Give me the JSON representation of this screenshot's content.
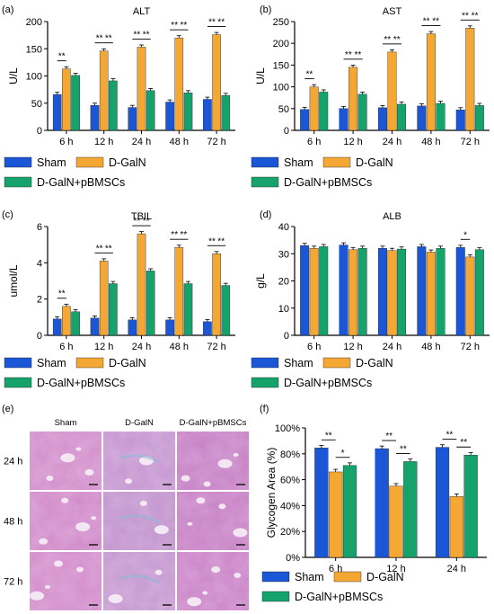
{
  "colors": {
    "sham": "#1a56d6",
    "dgaln": "#f5a733",
    "pbmsc": "#16a36b"
  },
  "legend": [
    "Sham",
    "D-GalN",
    "D-GalN+pBMSCs"
  ],
  "chart_data": [
    {
      "panel": "(a)",
      "type": "bar",
      "title": "ALT",
      "ylabel": "U/L",
      "categories": [
        "6 h",
        "12 h",
        "24 h",
        "48 h",
        "72 h"
      ],
      "ylim": [
        0,
        200
      ],
      "yticks": [
        0,
        50,
        100,
        150,
        200
      ],
      "series": [
        {
          "name": "Sham",
          "values": [
            66,
            46,
            42,
            52,
            57
          ]
        },
        {
          "name": "D-GalN",
          "values": [
            113,
            146,
            153,
            170,
            176
          ]
        },
        {
          "name": "D-GalN+pBMSCs",
          "values": [
            101,
            91,
            73,
            69,
            64
          ]
        }
      ],
      "significance": [
        {
          "group": 0,
          "from": 0,
          "to": 1,
          "label": "**"
        },
        {
          "group": 1,
          "from": 0,
          "to": 1,
          "label": "**"
        },
        {
          "group": 1,
          "from": 1,
          "to": 2,
          "label": "**"
        },
        {
          "group": 2,
          "from": 0,
          "to": 1,
          "label": "**"
        },
        {
          "group": 2,
          "from": 1,
          "to": 2,
          "label": "**"
        },
        {
          "group": 3,
          "from": 0,
          "to": 1,
          "label": "**"
        },
        {
          "group": 3,
          "from": 1,
          "to": 2,
          "label": "**"
        },
        {
          "group": 4,
          "from": 0,
          "to": 1,
          "label": "**"
        },
        {
          "group": 4,
          "from": 1,
          "to": 2,
          "label": "**"
        }
      ]
    },
    {
      "panel": "(b)",
      "type": "bar",
      "title": "AST",
      "ylabel": "U/L",
      "categories": [
        "6 h",
        "12 h",
        "24 h",
        "48 h",
        "72 h"
      ],
      "ylim": [
        0,
        250
      ],
      "yticks": [
        0,
        50,
        100,
        150,
        200,
        250
      ],
      "series": [
        {
          "name": "Sham",
          "values": [
            48,
            50,
            52,
            56,
            47
          ]
        },
        {
          "name": "D-GalN",
          "values": [
            100,
            145,
            180,
            222,
            235
          ]
        },
        {
          "name": "D-GalN+pBMSCs",
          "values": [
            88,
            83,
            60,
            62,
            57
          ]
        }
      ],
      "significance": [
        {
          "group": 0,
          "from": 0,
          "to": 1,
          "label": "**"
        },
        {
          "group": 1,
          "from": 0,
          "to": 1,
          "label": "**"
        },
        {
          "group": 1,
          "from": 1,
          "to": 2,
          "label": "**"
        },
        {
          "group": 2,
          "from": 0,
          "to": 1,
          "label": "**"
        },
        {
          "group": 2,
          "from": 1,
          "to": 2,
          "label": "**"
        },
        {
          "group": 3,
          "from": 0,
          "to": 1,
          "label": "**"
        },
        {
          "group": 3,
          "from": 1,
          "to": 2,
          "label": "**"
        },
        {
          "group": 4,
          "from": 0,
          "to": 1,
          "label": "**"
        },
        {
          "group": 4,
          "from": 1,
          "to": 2,
          "label": "**"
        }
      ]
    },
    {
      "panel": "(c)",
      "type": "bar",
      "title": "TBIL",
      "ylabel": "umol/L",
      "categories": [
        "6 h",
        "12 h",
        "24 h",
        "48 h",
        "72 h"
      ],
      "ylim": [
        0,
        6
      ],
      "yticks": [
        0,
        2,
        4,
        6
      ],
      "series": [
        {
          "name": "Sham",
          "values": [
            0.9,
            0.95,
            0.85,
            0.85,
            0.75
          ]
        },
        {
          "name": "D-GalN",
          "values": [
            1.6,
            4.1,
            5.6,
            4.85,
            4.5
          ]
        },
        {
          "name": "D-GalN+pBMSCs",
          "values": [
            1.3,
            2.85,
            3.55,
            2.85,
            2.75
          ]
        }
      ],
      "significance": [
        {
          "group": 0,
          "from": 0,
          "to": 1,
          "label": "**"
        },
        {
          "group": 1,
          "from": 0,
          "to": 1,
          "label": "**"
        },
        {
          "group": 1,
          "from": 1,
          "to": 2,
          "label": "**"
        },
        {
          "group": 2,
          "from": 0,
          "to": 1,
          "label": "**"
        },
        {
          "group": 2,
          "from": 1,
          "to": 2,
          "label": "**"
        },
        {
          "group": 3,
          "from": 0,
          "to": 1,
          "label": "**"
        },
        {
          "group": 3,
          "from": 1,
          "to": 2,
          "label": "**"
        },
        {
          "group": 4,
          "from": 0,
          "to": 1,
          "label": "**"
        },
        {
          "group": 4,
          "from": 1,
          "to": 2,
          "label": "**"
        }
      ]
    },
    {
      "panel": "(d)",
      "type": "bar",
      "title": "ALB",
      "ylabel": "g/L",
      "categories": [
        "6 h",
        "12 h",
        "24 h",
        "48 h",
        "72 h"
      ],
      "ylim": [
        0,
        40
      ],
      "yticks": [
        0,
        10,
        20,
        30,
        40
      ],
      "series": [
        {
          "name": "Sham",
          "values": [
            33,
            33.2,
            32,
            32.6,
            32.3
          ]
        },
        {
          "name": "D-GalN",
          "values": [
            32,
            31.5,
            31.2,
            30.6,
            28.8
          ]
        },
        {
          "name": "D-GalN+pBMSCs",
          "values": [
            32.6,
            32,
            31.7,
            32,
            31.5
          ]
        }
      ],
      "significance": [
        {
          "group": 4,
          "from": 0,
          "to": 1,
          "label": "*"
        }
      ]
    },
    {
      "panel": "(f)",
      "type": "bar",
      "title": "",
      "ylabel": "Glycogen Area (%)",
      "categories": [
        "6 h",
        "12 h",
        "24 h"
      ],
      "ylim": [
        0,
        100
      ],
      "yticks": [
        0,
        20,
        40,
        60,
        80,
        100
      ],
      "ytick_suffix": "%",
      "series": [
        {
          "name": "Sham",
          "values": [
            84.5,
            84,
            85
          ]
        },
        {
          "name": "D-GalN",
          "values": [
            66,
            55,
            47
          ]
        },
        {
          "name": "D-GalN+pBMSCs",
          "values": [
            71,
            74,
            79
          ]
        }
      ],
      "significance": [
        {
          "group": 0,
          "from": 0,
          "to": 1,
          "label": "**"
        },
        {
          "group": 0,
          "from": 1,
          "to": 2,
          "label": "*"
        },
        {
          "group": 1,
          "from": 0,
          "to": 1,
          "label": "**"
        },
        {
          "group": 1,
          "from": 1,
          "to": 2,
          "label": "**"
        },
        {
          "group": 2,
          "from": 0,
          "to": 1,
          "label": "**"
        },
        {
          "group": 2,
          "from": 1,
          "to": 2,
          "label": "**"
        }
      ]
    }
  ],
  "histology": {
    "panel": "(e)",
    "columns": [
      "Sham",
      "D-GalN",
      "D-GalN+pBMSCs"
    ],
    "rows": [
      "24 h",
      "48 h",
      "72 h"
    ]
  }
}
